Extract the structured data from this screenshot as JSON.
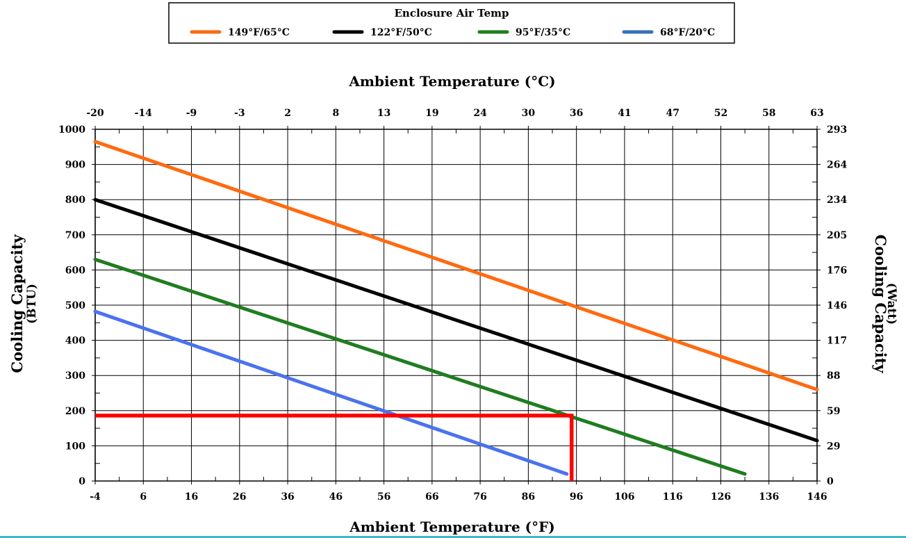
{
  "legend": {
    "title": "Enclosure Air Temp",
    "entries": [
      {
        "label": "149°F/65°C",
        "color": "#ff6a10"
      },
      {
        "label": "122°F/50°C",
        "color": "#000000"
      },
      {
        "label": "95°F/35°C",
        "color": "#1f7d1f"
      },
      {
        "label": "68°F/20°C",
        "color": "#3a6fb8"
      }
    ]
  },
  "axes": {
    "top_title": "Ambient Temperature (°C)",
    "bottom_title": "Ambient Temperature (°F)",
    "left_title": "Cooling Capacity",
    "left_subtitle": "(BTU)",
    "right_title": "Cooling Capacity",
    "right_subtitle": "(Watt)"
  },
  "chart_data": {
    "type": "line",
    "xlabel": "Ambient Temperature (°F)",
    "x2label": "Ambient Temperature (°C)",
    "ylabel": "Cooling Capacity (BTU)",
    "y2label": "Cooling Capacity (Watt)",
    "xlim": [
      -4,
      146
    ],
    "ylim": [
      0,
      1000
    ],
    "grid": true,
    "legend_position": "top-center",
    "x_ticks": [
      "-4",
      "6",
      "16",
      "26",
      "36",
      "46",
      "56",
      "66",
      "76",
      "86",
      "96",
      "106",
      "116",
      "126",
      "136",
      "146"
    ],
    "x2_ticks": [
      "-20",
      "-14",
      "-9",
      "-3",
      "2",
      "8",
      "13",
      "19",
      "24",
      "30",
      "36",
      "41",
      "47",
      "52",
      "58",
      "63"
    ],
    "y_ticks": [
      "0",
      "100",
      "200",
      "300",
      "400",
      "500",
      "600",
      "700",
      "800",
      "900",
      "1000"
    ],
    "y2_ticks": [
      "0",
      "29",
      "59",
      "88",
      "117",
      "146",
      "176",
      "205",
      "234",
      "264",
      "293"
    ],
    "series": [
      {
        "name": "149°F/65°C",
        "color": "#ff6a10",
        "x": [
          -4,
          146
        ],
        "y": [
          965,
          260
        ]
      },
      {
        "name": "122°F/50°C",
        "color": "#000000",
        "x": [
          -4,
          146
        ],
        "y": [
          800,
          115
        ]
      },
      {
        "name": "95°F/35°C",
        "color": "#1f7d1f",
        "x": [
          -4,
          131
        ],
        "y": [
          630,
          20
        ]
      },
      {
        "name": "68°F/20°C",
        "color": "#4a72f0",
        "x": [
          -4,
          94
        ],
        "y": [
          482,
          20
        ]
      }
    ],
    "annotation": {
      "color": "#ff0000",
      "x": 95,
      "y": 186
    }
  }
}
